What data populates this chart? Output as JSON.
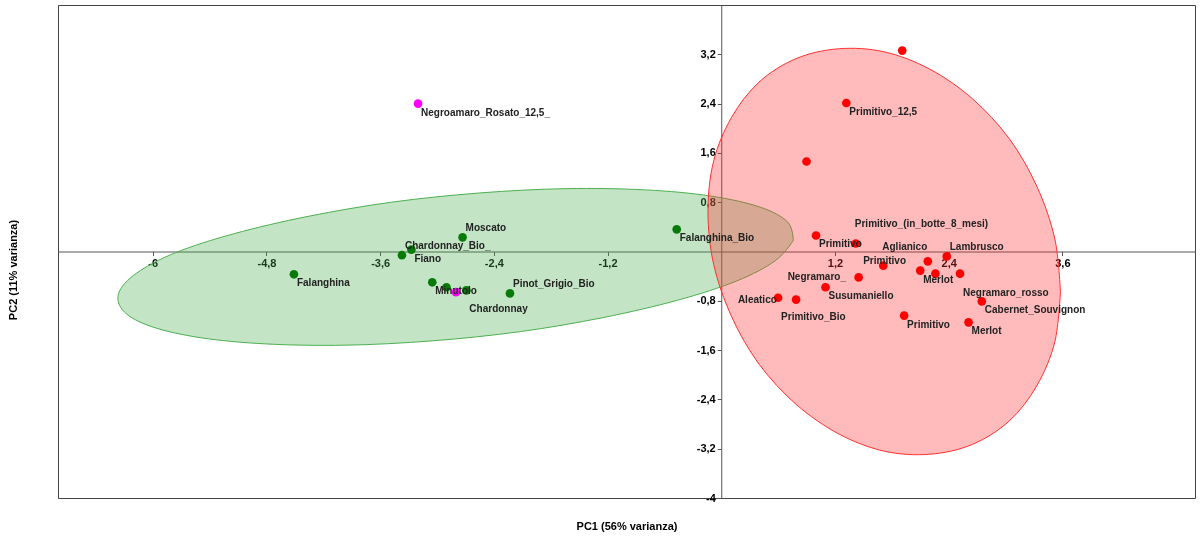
{
  "chart_data": {
    "type": "scatter",
    "xlabel": "PC1 (56% varianza)",
    "ylabel": "PC2 (11% varianza)",
    "xlim": [
      -7,
      5
    ],
    "ylim": [
      -4,
      4
    ],
    "xticks": [
      {
        "value": -6,
        "label": "-6"
      },
      {
        "value": -4.8,
        "label": "-4,8"
      },
      {
        "value": -3.6,
        "label": "-3,6"
      },
      {
        "value": -2.4,
        "label": "-2,4"
      },
      {
        "value": -1.2,
        "label": "-1,2"
      },
      {
        "value": 1.2,
        "label": "1,2"
      },
      {
        "value": 2.4,
        "label": "2,4"
      },
      {
        "value": 3.6,
        "label": "3,6"
      }
    ],
    "yticks": [
      {
        "value": 3.2,
        "label": "3,2"
      },
      {
        "value": 2.4,
        "label": "2,4"
      },
      {
        "value": 1.6,
        "label": "1,6"
      },
      {
        "value": 0.8,
        "label": "0,8"
      },
      {
        "value": -0.8,
        "label": "-0,8"
      },
      {
        "value": -1.6,
        "label": "-1,6"
      },
      {
        "value": -2.4,
        "label": "-2,4"
      },
      {
        "value": -3.2,
        "label": "-3,2"
      },
      -4
    ],
    "grid": false,
    "series": [
      {
        "type": "area",
        "color": "#4caf50",
        "x": [
          0.76,
          0.7,
          0.41,
          -0.11,
          -0.8,
          -1.64,
          -2.55,
          -3.48,
          -4.36,
          -5.14,
          -5.76,
          -6.17,
          -6.36,
          -6.3,
          -6.01,
          -5.49,
          -4.8,
          -3.96,
          -3.05,
          -2.12,
          -1.24,
          -0.46,
          0.16,
          0.57,
          0.76
        ],
        "values": [
          0.18,
          0.48,
          0.72,
          0.9,
          1.0,
          1.02,
          0.95,
          0.8,
          0.57,
          0.29,
          -0.02,
          -0.35,
          -0.68,
          -0.98,
          -1.22,
          -1.4,
          -1.5,
          -1.52,
          -1.45,
          -1.3,
          -1.07,
          -0.79,
          -0.48,
          -0.15,
          0.18
        ]
      },
      {
        "type": "area",
        "color": "#ff3030",
        "x": [
          3.58,
          3.52,
          3.33,
          3.04,
          2.65,
          2.2,
          1.72,
          1.24,
          0.79,
          0.4,
          0.11,
          -0.08,
          -0.14,
          -0.08,
          0.11,
          0.4,
          0.79,
          1.24,
          1.72,
          2.2,
          2.65,
          3.04,
          3.33,
          3.52,
          3.58
        ],
        "values": [
          -0.65,
          0.21,
          1.06,
          1.83,
          2.48,
          2.96,
          3.24,
          3.29,
          3.13,
          2.75,
          2.18,
          1.47,
          0.65,
          -0.21,
          -1.06,
          -1.83,
          -2.48,
          -2.96,
          -3.24,
          -3.29,
          -3.13,
          -2.75,
          -2.18,
          -1.47,
          -0.65
        ]
      },
      {
        "marker": "circle",
        "color": "#087a08",
        "x": [
          -4.51,
          -3.27,
          -3.37,
          -2.73,
          -0.47,
          -3.05,
          -2.9,
          -2.69,
          -2.23
        ],
        "values": [
          -0.37,
          0.03,
          -0.06,
          0.23,
          0.36,
          -0.5,
          -0.58,
          -0.63,
          -0.68
        ]
      },
      {
        "marker": "circle",
        "color": "#ff0000",
        "x": [
          1.91,
          1.32,
          0.9,
          1.0,
          1.42,
          2.38,
          2.18,
          2.1,
          2.26,
          2.52,
          1.71,
          1.45,
          1.1,
          0.6,
          0.79,
          1.93,
          2.75,
          2.61
        ],
        "values": [
          3.26,
          2.41,
          1.46,
          0.26,
          0.13,
          -0.08,
          -0.16,
          -0.31,
          -0.36,
          -0.36,
          -0.23,
          -0.42,
          -0.58,
          -0.75,
          -0.78,
          -1.04,
          -0.81,
          -1.15
        ]
      },
      {
        "marker": "circle",
        "color": "#ff00ff",
        "x": [
          -3.2,
          -2.8
        ],
        "values": [
          2.4,
          -0.66
        ]
      }
    ],
    "annotations": [
      {
        "text": "Negroamaro_Rosato_12,5_",
        "x": -3.2,
        "y": 2.4
      },
      {
        "text": "Falanghina",
        "x": -4.51,
        "y": -0.37
      },
      {
        "text": "Fiano",
        "x": -3.27,
        "y": 0.03
      },
      {
        "text": "Chardonnay_Bio_",
        "x": -3.37,
        "y": -0.06
      },
      {
        "text": "Moscato",
        "x": -2.73,
        "y": 0.23
      },
      {
        "text": "Falanghina_Bio",
        "x": -0.47,
        "y": 0.36
      },
      {
        "text": "Minutolo",
        "x": -3.05,
        "y": -0.5
      },
      {
        "text": "Chardonnay",
        "x": -2.69,
        "y": -0.63
      },
      {
        "text": "Pinot_Grigio_Bio",
        "x": -2.23,
        "y": -0.68
      },
      {
        "text": "Primitivo_12,5",
        "x": 1.32,
        "y": 2.41
      },
      {
        "text": "Primitivo",
        "x": 1.0,
        "y": 0.26
      },
      {
        "text": "Primitivo_(in_botte_8_mesi)",
        "x": 1.42,
        "y": 0.13
      },
      {
        "text": "Lambrusco",
        "x": 2.38,
        "y": -0.08
      },
      {
        "text": "Primitivo",
        "x": 2.18,
        "y": -0.16
      },
      {
        "text": "Merlot",
        "x": 2.1,
        "y": -0.31
      },
      {
        "text": "Negramaro_rosso",
        "x": 2.52,
        "y": -0.36
      },
      {
        "text": "Aglianico",
        "x": 1.71,
        "y": -0.23
      },
      {
        "text": "Negramaro_",
        "x": 1.45,
        "y": -0.42
      },
      {
        "text": "Susumaniello",
        "x": 1.1,
        "y": -0.58
      },
      {
        "text": "Primitivo_Bio",
        "x": 0.6,
        "y": -0.75
      },
      {
        "text": "Aleatico",
        "x": 0.79,
        "y": -0.78
      },
      {
        "text": "Primitivo",
        "x": 1.93,
        "y": -1.04
      },
      {
        "text": "Cabernet_Souvignon",
        "x": 2.75,
        "y": -0.81
      },
      {
        "text": "Merlot",
        "x": 2.61,
        "y": -1.15
      }
    ]
  }
}
